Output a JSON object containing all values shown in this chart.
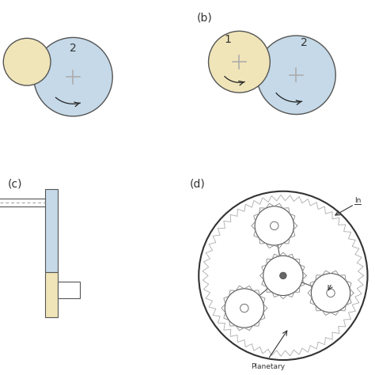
{
  "bg": "#ffffff",
  "blue": "#c5d9e8",
  "yellow": "#f0e5b8",
  "edge": "#555555",
  "dark": "#222222",
  "gray": "#999999",
  "label_b": "(b)",
  "label_c": "(c)",
  "label_d": "(d)"
}
